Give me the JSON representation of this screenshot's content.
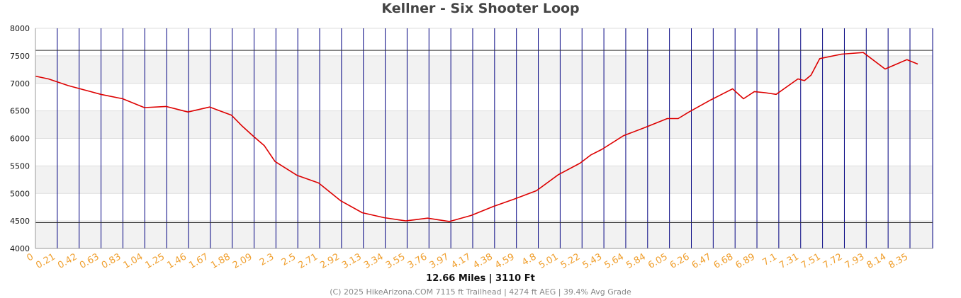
{
  "chart_data": {
    "type": "line",
    "title": "Kellner - Six Shooter Loop",
    "xlabel": "12.66 Miles | 3110 Ft",
    "ylabel": "",
    "ylim": [
      4000,
      8000
    ],
    "yticks": [
      4000,
      4500,
      5000,
      5500,
      6000,
      6500,
      7000,
      7500,
      8000
    ],
    "x_tick_labels": [
      "0",
      "0.21",
      "0.42",
      "0.63",
      "0.83",
      "1.04",
      "1.25",
      "1.46",
      "1.67",
      "1.88",
      "2.09",
      "2.3",
      "2.5",
      "2.71",
      "2.92",
      "3.13",
      "3.34",
      "3.55",
      "3.76",
      "3.97",
      "4.17",
      "4.38",
      "4.59",
      "4.8",
      "5.01",
      "5.22",
      "5.43",
      "5.64",
      "5.84",
      "6.05",
      "6.26",
      "6.47",
      "6.68",
      "6.89",
      "7.1",
      "7.31",
      "7.51",
      "7.72",
      "7.93",
      "8.14",
      "8.35"
    ],
    "reference_lines": [
      7600,
      4470
    ],
    "band_fill": "#f2f2f2",
    "line_color": "#dd0000",
    "marker_color": "#000080",
    "tick_label_color": "#f0a030",
    "x_index": [
      0,
      0.6,
      1.5,
      3,
      4,
      5,
      6,
      7,
      8,
      9,
      9.5,
      10,
      10.5,
      11,
      12,
      13,
      14,
      15,
      16,
      17,
      18,
      19,
      20,
      21,
      22,
      23,
      24,
      25,
      25.5,
      26,
      27,
      28,
      29,
      29.5,
      30,
      31,
      32,
      32.5,
      33,
      33.5,
      34,
      35,
      35.3,
      35.6,
      36,
      37,
      38,
      39,
      40,
      40.5
    ],
    "elevation": [
      7130,
      7080,
      6960,
      6800,
      6720,
      6560,
      6580,
      6480,
      6570,
      6420,
      6220,
      6040,
      5870,
      5580,
      5330,
      5190,
      4870,
      4650,
      4560,
      4500,
      4550,
      4490,
      4600,
      4760,
      4900,
      5050,
      5340,
      5550,
      5700,
      5800,
      6050,
      6200,
      6360,
      6360,
      6480,
      6700,
      6900,
      6720,
      6850,
      6830,
      6800,
      7080,
      7050,
      7150,
      7450,
      7530,
      7560,
      7260,
      7430,
      7350
    ]
  },
  "summary": "12.66 Miles | 3110 Ft",
  "credit": "(C) 2025 HikeArizona.COM  7115 ft Trailhead | 4274 ft AEG | 39.4% Avg Grade"
}
